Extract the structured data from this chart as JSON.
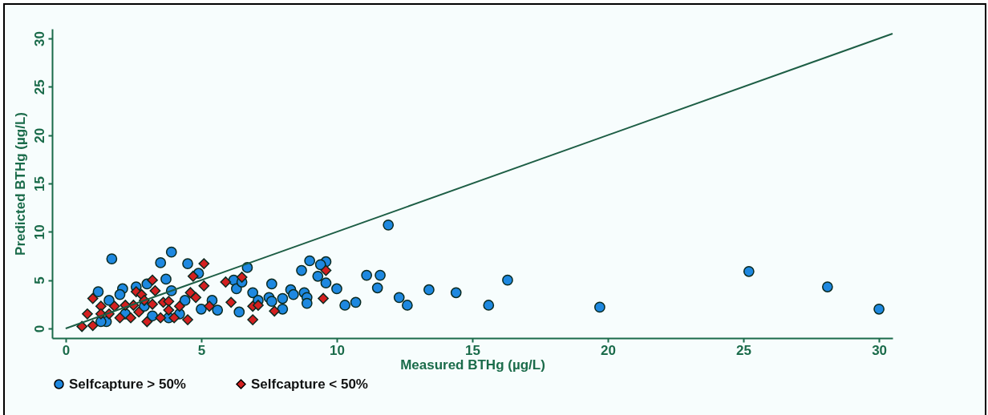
{
  "chart_data": {
    "type": "scatter",
    "xlabel": "Measured BTHg (µg/L)",
    "ylabel": "Predicted BTHg (µg/L)",
    "xlim": [
      -0.5,
      30.5
    ],
    "ylim": [
      -1,
      31
    ],
    "xticks": [
      0,
      5,
      10,
      15,
      20,
      25,
      30
    ],
    "yticks": [
      0,
      5,
      10,
      15,
      20,
      25,
      30
    ],
    "legend": "bottom",
    "grid": false,
    "series": [
      {
        "name": "Selfcapture > 50%",
        "color": "#1e88e0",
        "marker": "circle",
        "x": [
          1.7,
          3.9,
          3.5,
          4.5,
          4.9,
          3.7,
          1.2,
          2.1,
          2.6,
          3.0,
          2.0,
          3.9,
          4.4,
          3.2,
          3.8,
          1.5,
          1.3,
          5.4,
          5.6,
          5.0,
          6.2,
          6.3,
          6.4,
          1.6,
          2.2,
          4.2,
          2.9,
          11.9,
          6.7,
          9.0,
          9.6,
          8.7,
          9.4,
          9.3,
          9.6,
          10.0,
          11.1,
          11.6,
          11.5,
          13.4,
          12.3,
          12.6,
          10.3,
          10.7,
          7.6,
          6.5,
          6.9,
          7.5,
          7.6,
          8.0,
          8.3,
          8.4,
          8.8,
          8.9,
          8.9,
          8.0,
          7.1,
          14.4,
          15.6,
          16.3,
          19.7,
          25.2,
          28.1,
          30.0
        ],
        "values": [
          7.2,
          7.9,
          6.8,
          6.7,
          5.7,
          5.1,
          3.8,
          4.1,
          4.3,
          4.6,
          3.5,
          3.9,
          2.9,
          1.3,
          1.1,
          0.7,
          0.7,
          2.9,
          1.9,
          2.0,
          5.0,
          4.1,
          1.7,
          2.9,
          1.5,
          1.5,
          2.3,
          10.7,
          6.3,
          7.0,
          6.9,
          6.0,
          6.6,
          5.4,
          4.7,
          4.1,
          5.5,
          5.5,
          4.2,
          4.0,
          3.2,
          2.4,
          2.4,
          2.7,
          4.6,
          4.8,
          3.7,
          3.2,
          2.8,
          3.1,
          4.0,
          3.5,
          3.7,
          3.2,
          2.6,
          2.0,
          2.9,
          3.7,
          2.4,
          5.0,
          2.2,
          5.9,
          4.3,
          2.0
        ]
      },
      {
        "name": "Selfcapture < 50%",
        "color": "#d42020",
        "marker": "diamond",
        "x": [
          0.6,
          1.0,
          0.8,
          1.0,
          1.3,
          1.3,
          1.6,
          2.0,
          2.4,
          3.0,
          3.5,
          4.0,
          4.5,
          2.6,
          2.8,
          3.2,
          3.3,
          2.5,
          2.9,
          3.2,
          3.6,
          3.8,
          4.2,
          4.6,
          4.8,
          4.7,
          5.1,
          5.1,
          5.3,
          5.9,
          6.1,
          1.8,
          2.2,
          2.7,
          3.8,
          6.5,
          9.6,
          9.5,
          6.9,
          7.1,
          7.7,
          6.9
        ],
        "values": [
          0.2,
          0.3,
          1.5,
          3.1,
          2.3,
          1.5,
          1.5,
          1.1,
          1.1,
          0.7,
          1.1,
          1.1,
          0.9,
          3.8,
          3.5,
          5.0,
          3.9,
          2.4,
          2.9,
          2.5,
          2.7,
          2.8,
          2.3,
          3.7,
          3.2,
          5.4,
          6.7,
          4.4,
          2.3,
          4.8,
          2.7,
          2.3,
          2.4,
          1.7,
          1.9,
          5.3,
          6.0,
          3.1,
          2.3,
          2.4,
          1.8,
          0.9
        ]
      },
      {
        "type": "line",
        "color": "#1d5e45",
        "x": [
          0,
          30.5
        ],
        "values": [
          0,
          30.5
        ]
      }
    ]
  }
}
